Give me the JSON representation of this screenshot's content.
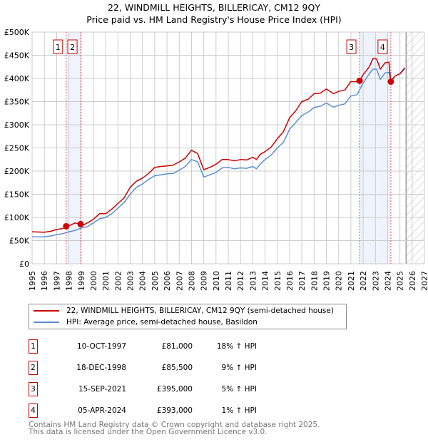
{
  "chart_data": {
    "type": "line",
    "title": "22, WINDMILL HEIGHTS, BILLERICAY, CM12 9QY",
    "subtitle": "Price paid vs. HM Land Registry's House Price Index (HPI)",
    "xlim": [
      1995,
      2027
    ],
    "ylim": [
      0,
      500000
    ],
    "x_ticks": [
      "1995",
      "1996",
      "1997",
      "1998",
      "1999",
      "2000",
      "2001",
      "2002",
      "2003",
      "2004",
      "2005",
      "2006",
      "2007",
      "2008",
      "2009",
      "2010",
      "2011",
      "2012",
      "2013",
      "2014",
      "2015",
      "2016",
      "2017",
      "2018",
      "2019",
      "2020",
      "2021",
      "2022",
      "2023",
      "2024",
      "2025",
      "2026",
      "2027"
    ],
    "y_ticks": [
      {
        "value": 0,
        "label": "£0"
      },
      {
        "value": 50000,
        "label": "£50K"
      },
      {
        "value": 100000,
        "label": "£100K"
      },
      {
        "value": 150000,
        "label": "£150K"
      },
      {
        "value": 200000,
        "label": "£200K"
      },
      {
        "value": 250000,
        "label": "£250K"
      },
      {
        "value": 300000,
        "label": "£300K"
      },
      {
        "value": 350000,
        "label": "£350K"
      },
      {
        "value": 400000,
        "label": "£400K"
      },
      {
        "value": 450000,
        "label": "£450K"
      },
      {
        "value": 500000,
        "label": "£500K"
      }
    ],
    "grid": true,
    "forecast_hatch_from": 2025.5,
    "shaded_ranges": [
      [
        1997.78,
        1998.96
      ],
      [
        2021.71,
        2024.26
      ]
    ],
    "series": [
      {
        "name": "22, WINDMILL HEIGHTS, BILLERICAY, CM12 9QY (semi-detached house)",
        "color": "#cc0000",
        "x": [
          1995,
          1996,
          1996.5,
          1997,
          1997.5,
          1997.78,
          1998,
          1998.5,
          1998.96,
          1999.2,
          1999.5,
          2000,
          2000.5,
          2001,
          2001.5,
          2002,
          2002.5,
          2003,
          2003.5,
          2004,
          2004.5,
          2005,
          2005.5,
          2006,
          2006.5,
          2007,
          2007.5,
          2008,
          2008.5,
          2009,
          2009.5,
          2010,
          2010.5,
          2011,
          2011.5,
          2012,
          2012.5,
          2013,
          2013.3,
          2013.6,
          2014,
          2014.5,
          2015,
          2015.5,
          2016,
          2016.5,
          2017,
          2017.5,
          2018,
          2018.5,
          2019,
          2019.6,
          2020,
          2020.5,
          2021,
          2021.5,
          2021.71,
          2022,
          2022.5,
          2022.8,
          2023.1,
          2023.4,
          2023.8,
          2024.1,
          2024.26,
          2024.6,
          2025,
          2025.4
        ],
        "y": [
          69000,
          68000,
          70000,
          74000,
          76000,
          81000,
          82000,
          88000,
          85500,
          84000,
          88000,
          96000,
          108000,
          108000,
          118000,
          130000,
          142000,
          165000,
          178000,
          185000,
          195000,
          208000,
          210000,
          211000,
          213000,
          220000,
          228000,
          245000,
          238000,
          203000,
          208000,
          215000,
          225000,
          225000,
          222000,
          225000,
          224000,
          230000,
          225000,
          236000,
          242000,
          252000,
          270000,
          285000,
          315000,
          330000,
          350000,
          355000,
          367000,
          368000,
          377000,
          367000,
          372000,
          375000,
          393000,
          393000,
          395000,
          408000,
          425000,
          443000,
          442000,
          420000,
          434000,
          435000,
          393000,
          405000,
          410000,
          423000
        ]
      },
      {
        "name": "HPI: Average price, semi-detached house, Basildon",
        "color": "#5b8fd4",
        "x": [
          1995,
          1996,
          1996.5,
          1997,
          1997.5,
          1998,
          1998.5,
          1999,
          1999.5,
          2000,
          2000.5,
          2001,
          2001.5,
          2002,
          2002.5,
          2003,
          2003.5,
          2004,
          2004.5,
          2005,
          2005.5,
          2006,
          2006.5,
          2007,
          2007.5,
          2008,
          2008.5,
          2009,
          2009.5,
          2010,
          2010.5,
          2011,
          2011.5,
          2012,
          2012.5,
          2013,
          2013.3,
          2013.6,
          2014,
          2014.5,
          2015,
          2015.5,
          2016,
          2016.5,
          2017,
          2017.5,
          2018,
          2018.5,
          2019,
          2019.6,
          2020,
          2020.5,
          2021,
          2021.5,
          2022,
          2022.5,
          2022.8,
          2023.1,
          2023.4,
          2023.8,
          2024.1,
          2024.26,
          2024.6,
          2025,
          2025.4
        ],
        "y": [
          58000,
          58000,
          60000,
          63000,
          65000,
          69000,
          72000,
          77000,
          80000,
          88000,
          97000,
          100000,
          108000,
          120000,
          132000,
          150000,
          165000,
          172000,
          182000,
          190000,
          192000,
          194000,
          195000,
          202000,
          210000,
          225000,
          220000,
          187000,
          192000,
          197000,
          207000,
          208000,
          205000,
          207000,
          206000,
          210000,
          205000,
          215000,
          225000,
          235000,
          250000,
          262000,
          290000,
          305000,
          320000,
          327000,
          337000,
          340000,
          347000,
          338000,
          342000,
          345000,
          362000,
          365000,
          390000,
          410000,
          420000,
          420000,
          398000,
          412000,
          413000,
          395000,
          405000,
          410000,
          420000
        ]
      }
    ],
    "sales": [
      {
        "n": "1",
        "x": 1997.78,
        "y": 81000
      },
      {
        "n": "2",
        "x": 1998.96,
        "y": 85500
      },
      {
        "n": "3",
        "x": 2021.71,
        "y": 395000
      },
      {
        "n": "4",
        "x": 2024.26,
        "y": 393000
      }
    ]
  },
  "legend": {
    "property": "22, WINDMILL HEIGHTS, BILLERICAY, CM12 9QY (semi-detached house)",
    "hpi": "HPI: Average price, semi-detached house, Basildon"
  },
  "sales_table": [
    {
      "n": "1",
      "date": "10-OCT-1997",
      "price": "£81,000",
      "hpi": "18% ↑ HPI"
    },
    {
      "n": "2",
      "date": "18-DEC-1998",
      "price": "£85,500",
      "hpi": "9% ↑ HPI"
    },
    {
      "n": "3",
      "date": "15-SEP-2021",
      "price": "£395,000",
      "hpi": "5% ↑ HPI"
    },
    {
      "n": "4",
      "date": "05-APR-2024",
      "price": "£393,000",
      "hpi": "1% ↑ HPI"
    }
  ],
  "footer": {
    "line1": "Contains HM Land Registry data © Crown copyright and database right 2025.",
    "line2": "This data is licensed under the Open Government Licence v3.0."
  }
}
